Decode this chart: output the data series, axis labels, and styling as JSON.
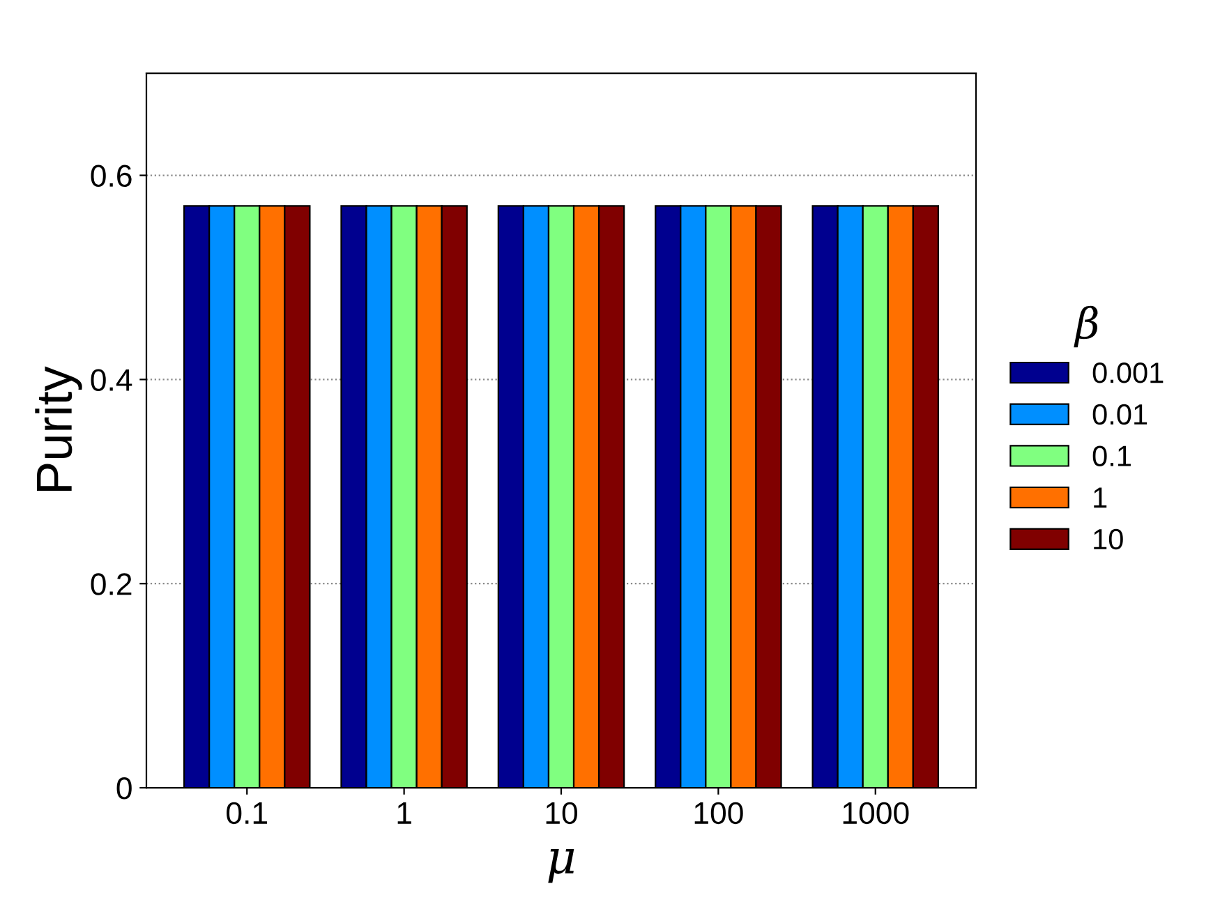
{
  "chart_data": {
    "type": "bar",
    "xlabel": "μ",
    "ylabel": "Purity",
    "legend_title": "β",
    "categories": [
      "0.1",
      "1",
      "10",
      "100",
      "1000"
    ],
    "series": [
      {
        "name": "0.001",
        "color": "#00008f",
        "values": [
          0.57,
          0.57,
          0.57,
          0.57,
          0.57
        ]
      },
      {
        "name": "0.01",
        "color": "#008fff",
        "values": [
          0.57,
          0.57,
          0.57,
          0.57,
          0.57
        ]
      },
      {
        "name": "0.1",
        "color": "#80ff80",
        "values": [
          0.57,
          0.57,
          0.57,
          0.57,
          0.57
        ]
      },
      {
        "name": "1",
        "color": "#ff7000",
        "values": [
          0.57,
          0.57,
          0.57,
          0.57,
          0.57
        ]
      },
      {
        "name": "10",
        "color": "#800000",
        "values": [
          0.57,
          0.57,
          0.57,
          0.57,
          0.57
        ]
      }
    ],
    "ylim": [
      0,
      0.7
    ],
    "yticks": [
      0,
      0.2,
      0.4,
      0.6
    ],
    "grid": "y",
    "legend": "right"
  }
}
